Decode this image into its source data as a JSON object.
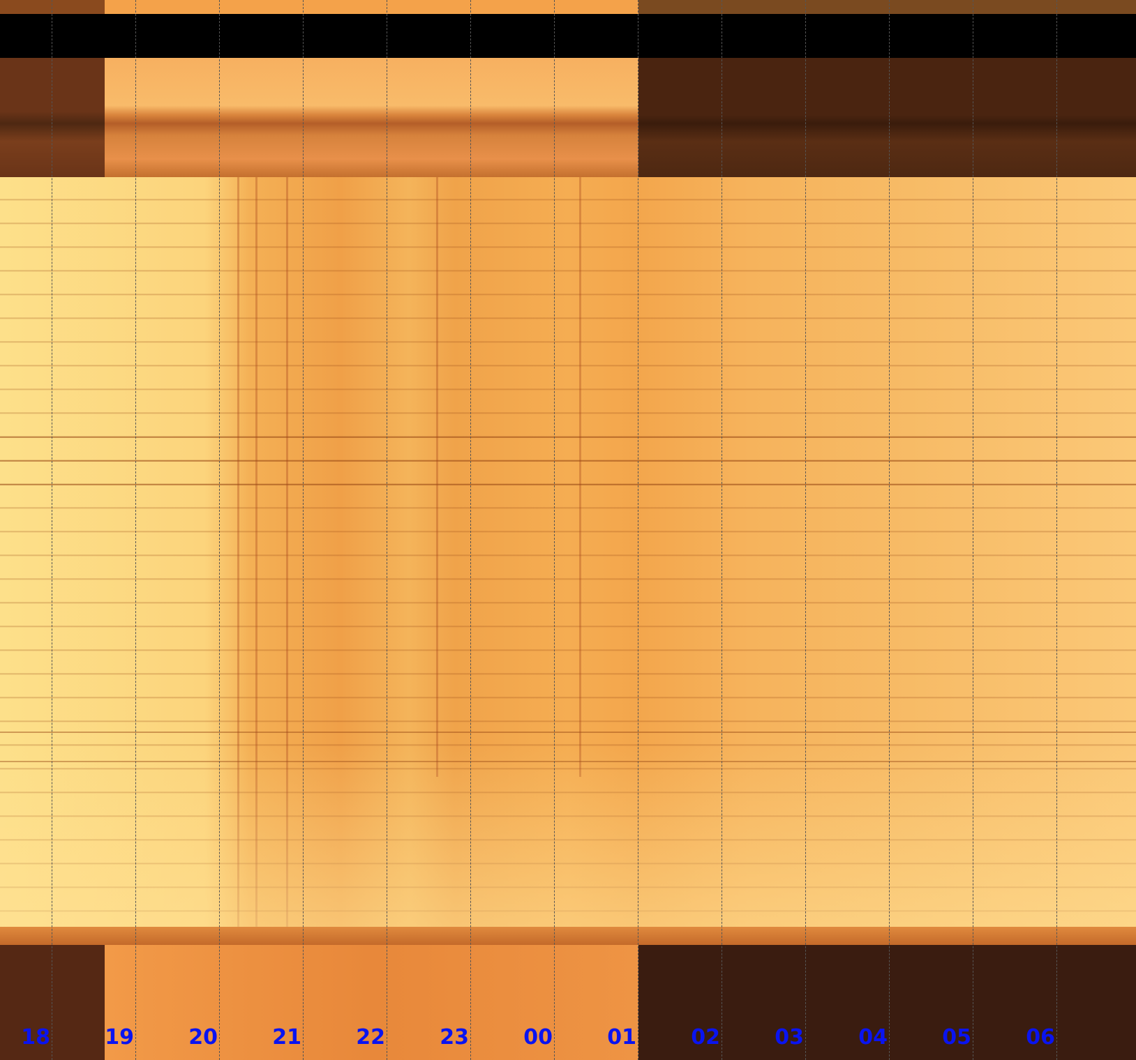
{
  "chart_data": {
    "type": "heatmap",
    "title": "",
    "xlabel": "",
    "ylabel": "",
    "x_tick_labels": [
      "18",
      "19",
      "20",
      "21",
      "22",
      "23",
      "00",
      "01",
      "02",
      "03",
      "04",
      "05",
      "06"
    ],
    "grid": "vertical dashed lines at each hour",
    "colormap": "black-brown-orange-yellow",
    "tick_label_color": "#0a14f0"
  }
}
